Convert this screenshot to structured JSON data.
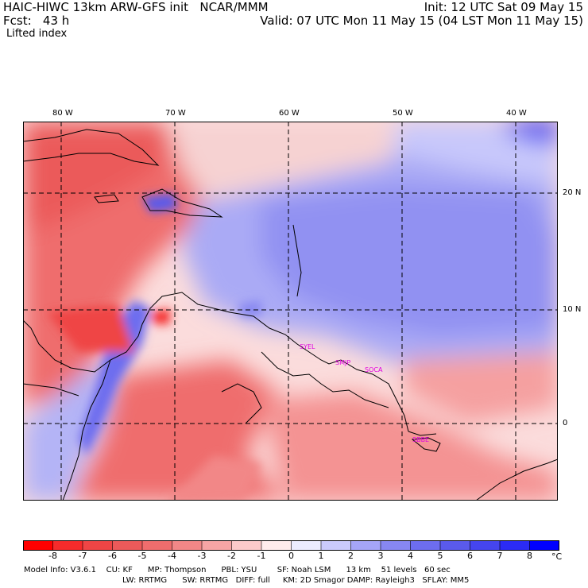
{
  "header": {
    "title_left": "HAIC-HIWC 13km ARW-GFS init   NCAR/MMM",
    "fcst": "Fcst:   43 h",
    "field": "Lifted index",
    "init": "Init: 12 UTC Sat 09 May 15",
    "valid": "Valid: 07 UTC Mon 11 May 15 (04 LST Mon 11 May 15)"
  },
  "map": {
    "lon_labels": [
      "80 W",
      "70 W",
      "60 W",
      "50 W",
      "40 W"
    ],
    "lat_labels": [
      "20 N",
      "10 N",
      "0"
    ],
    "station_labels": [
      "SYEL",
      "SMJP",
      "SOCA",
      "SBBE"
    ],
    "station_color": "#e000e0"
  },
  "colorbar": {
    "ticks": [
      "-8",
      "-7",
      "-6",
      "-5",
      "-4",
      "-3",
      "-2",
      "-1",
      "0",
      "1",
      "2",
      "3",
      "4",
      "5",
      "6",
      "7",
      "8"
    ],
    "unit": "°C",
    "colors": [
      "#ff0000",
      "#f52b2b",
      "#ef4545",
      "#eb5a5a",
      "#ef6d6d",
      "#f28787",
      "#f7a5a5",
      "#fbcaca",
      "#ffecec",
      "#ececff",
      "#cacafb",
      "#a5a5f7",
      "#8787f2",
      "#6d6def",
      "#5a5aeb",
      "#4545ef",
      "#2b2bf5",
      "#0000ff"
    ]
  },
  "footer": {
    "line1": "Model Info: V3.6.1    CU: KF      MP: Thompson      PBL: YSU        SF: Noah LSM      13 km    51 levels   60 sec",
    "line2": "LW: RRTMG      SW: RRTMG   DIFF: full     KM: 2D Smagor DAMP: Rayleigh3   SFLAY: MM5"
  }
}
